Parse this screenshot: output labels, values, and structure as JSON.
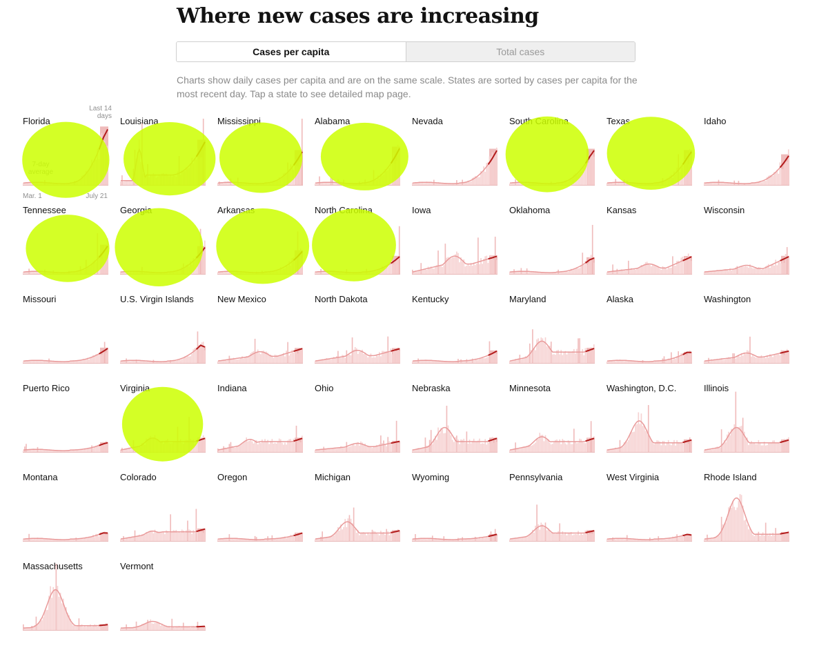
{
  "header": {
    "title": "Where new cases are increasing",
    "tabs": [
      {
        "label": "Cases per capita",
        "active": true
      },
      {
        "label": "Total cases",
        "active": false
      }
    ],
    "description": "Charts show daily cases per capita and are on the same scale. States are sorted by cases per capita for the most recent day. Tap a state to see detailed map page."
  },
  "annotations": {
    "last_days": "Last 14 days",
    "avg": "7-day average",
    "x_start": "Mar. 1",
    "x_end": "July 21"
  },
  "colors": {
    "bars": "#f6d2d2",
    "spikes": "#f0bcbc",
    "line_early": "#e99a9a",
    "line_recent": "#b21a1a",
    "highlight": "#ccff00",
    "last14_band": "#eaa4a4"
  },
  "chart_data": {
    "type": "area",
    "xlabel": "",
    "ylabel": "",
    "x_range": [
      "Mar. 1",
      "July 21"
    ],
    "highlighted": [
      "Florida",
      "Louisiana",
      "Mississippi",
      "Alabama",
      "South Carolina",
      "Texas",
      "Tennessee",
      "Georgia",
      "Arkansas",
      "North Carolina",
      "Virginia"
    ],
    "series": [
      {
        "name": "Florida",
        "shape": "late",
        "peak": 0.92,
        "end": 0.84
      },
      {
        "name": "Louisiana",
        "shape": "twin",
        "early": 0.5,
        "peak": 0.62,
        "end": 0.62
      },
      {
        "name": "Mississippi",
        "shape": "late",
        "peak": 0.5,
        "end": 0.5
      },
      {
        "name": "Alabama",
        "shape": "late",
        "peak": 0.55,
        "end": 0.55
      },
      {
        "name": "Nevada",
        "shape": "late",
        "peak": 0.52,
        "end": 0.52
      },
      {
        "name": "South Carolina",
        "shape": "late",
        "peak": 0.55,
        "end": 0.52
      },
      {
        "name": "Texas",
        "shape": "late",
        "peak": 0.52,
        "end": 0.5
      },
      {
        "name": "Idaho",
        "shape": "late",
        "peak": 0.44,
        "end": 0.44
      },
      {
        "name": "Tennessee",
        "shape": "late",
        "peak": 0.42,
        "end": 0.42
      },
      {
        "name": "Georgia",
        "shape": "late",
        "peak": 0.4,
        "end": 0.4
      },
      {
        "name": "Arkansas",
        "shape": "late",
        "peak": 0.34,
        "end": 0.34
      },
      {
        "name": "North Carolina",
        "shape": "late",
        "peak": 0.26,
        "end": 0.26
      },
      {
        "name": "Iowa",
        "shape": "mid",
        "early": 0.24,
        "end": 0.26
      },
      {
        "name": "Oklahoma",
        "shape": "late",
        "peak": 0.27,
        "end": 0.24
      },
      {
        "name": "Kansas",
        "shape": "mid",
        "early": 0.12,
        "end": 0.24
      },
      {
        "name": "Wisconsin",
        "shape": "mid",
        "early": 0.1,
        "end": 0.24
      },
      {
        "name": "Missouri",
        "shape": "late",
        "peak": 0.22,
        "end": 0.22
      },
      {
        "name": "U.S. Virgin Islands",
        "shape": "late",
        "peak": 0.34,
        "end": 0.24
      },
      {
        "name": "New Mexico",
        "shape": "mid",
        "early": 0.14,
        "end": 0.2
      },
      {
        "name": "North Dakota",
        "shape": "mid",
        "early": 0.16,
        "end": 0.2
      },
      {
        "name": "Kentucky",
        "shape": "late",
        "peak": 0.18,
        "end": 0.18
      },
      {
        "name": "Maryland",
        "shape": "hump",
        "early": 0.3,
        "end": 0.15
      },
      {
        "name": "Alaska",
        "shape": "late",
        "peak": 0.2,
        "end": 0.16
      },
      {
        "name": "Washington",
        "shape": "mid",
        "early": 0.12,
        "end": 0.16
      },
      {
        "name": "Puerto Rico",
        "shape": "late",
        "peak": 0.15,
        "end": 0.14
      },
      {
        "name": "Virginia",
        "shape": "hump",
        "early": 0.18,
        "end": 0.14
      },
      {
        "name": "Indiana",
        "shape": "hump",
        "early": 0.16,
        "end": 0.14
      },
      {
        "name": "Ohio",
        "shape": "mid",
        "early": 0.1,
        "end": 0.14
      },
      {
        "name": "Nebraska",
        "shape": "hump",
        "early": 0.34,
        "end": 0.14
      },
      {
        "name": "Minnesota",
        "shape": "hump",
        "early": 0.2,
        "end": 0.14
      },
      {
        "name": "Washington, D.C.",
        "shape": "hump",
        "early": 0.44,
        "end": 0.12
      },
      {
        "name": "Illinois",
        "shape": "hump",
        "early": 0.34,
        "end": 0.12
      },
      {
        "name": "Montana",
        "shape": "late",
        "peak": 0.15,
        "end": 0.12
      },
      {
        "name": "Colorado",
        "shape": "hump",
        "early": 0.12,
        "end": 0.12
      },
      {
        "name": "Oregon",
        "shape": "late",
        "peak": 0.12,
        "end": 0.12
      },
      {
        "name": "Michigan",
        "shape": "hump",
        "early": 0.26,
        "end": 0.1
      },
      {
        "name": "Wyoming",
        "shape": "late",
        "peak": 0.1,
        "end": 0.1
      },
      {
        "name": "Pennsylvania",
        "shape": "hump",
        "early": 0.2,
        "end": 0.1
      },
      {
        "name": "West Virginia",
        "shape": "late",
        "peak": 0.12,
        "end": 0.09
      },
      {
        "name": "Rhode Island",
        "shape": "hump",
        "early": 0.62,
        "end": 0.08
      },
      {
        "name": "Massachusetts",
        "shape": "hump",
        "early": 0.58,
        "end": 0.04
      },
      {
        "name": "Vermont",
        "shape": "hump",
        "early": 0.1,
        "end": 0.02
      }
    ]
  }
}
